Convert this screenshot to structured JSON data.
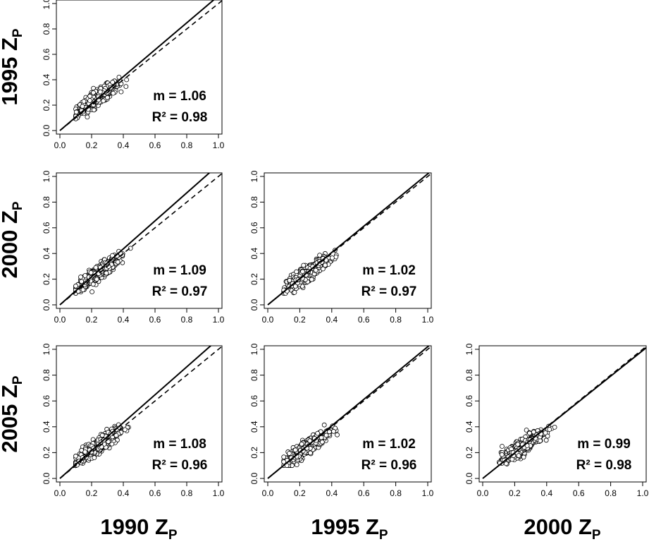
{
  "row_labels": [
    {
      "year": "1995",
      "symbol": "Z",
      "sub": "P"
    },
    {
      "year": "2000",
      "symbol": "Z",
      "sub": "P"
    },
    {
      "year": "2005",
      "symbol": "Z",
      "sub": "P"
    }
  ],
  "col_labels": [
    {
      "year": "1990",
      "symbol": "Z",
      "sub": "P"
    },
    {
      "year": "1995",
      "symbol": "Z",
      "sub": "P"
    },
    {
      "year": "2000",
      "symbol": "Z",
      "sub": "P"
    }
  ],
  "chart_data": [
    {
      "type": "scatter",
      "panel": "1995-vs-1990",
      "row": 0,
      "col": 0,
      "xlim": [
        0,
        1
      ],
      "ylim": [
        0,
        1
      ],
      "x_ticks": [
        "0.0",
        "0.2",
        "0.4",
        "0.6",
        "0.8",
        "1.0"
      ],
      "y_ticks": [
        "0.0",
        "0.2",
        "0.4",
        "0.6",
        "0.8",
        "1.0"
      ],
      "slope_label": "m = 1.06",
      "r2_label": "R² = 0.98",
      "slope": 1.06,
      "r2": 0.98,
      "point_cloud": {
        "x_range": [
          0.1,
          0.45
        ],
        "y_range": [
          0.09,
          0.45
        ],
        "center": [
          0.24,
          0.26
        ],
        "n": 420
      }
    },
    {
      "type": "scatter",
      "panel": "2000-vs-1990",
      "row": 1,
      "col": 0,
      "xlim": [
        0,
        1
      ],
      "ylim": [
        0,
        1
      ],
      "x_ticks": [
        "0.0",
        "0.2",
        "0.4",
        "0.6",
        "0.8",
        "1.0"
      ],
      "y_ticks": [
        "0.0",
        "0.2",
        "0.4",
        "0.6",
        "0.8",
        "1.0"
      ],
      "slope_label": "m = 1.09",
      "r2_label": "R² = 0.97",
      "slope": 1.09,
      "r2": 0.97,
      "point_cloud": {
        "x_range": [
          0.1,
          0.45
        ],
        "y_range": [
          0.09,
          0.44
        ],
        "center": [
          0.24,
          0.25
        ],
        "n": 420
      }
    },
    {
      "type": "scatter",
      "panel": "2000-vs-1995",
      "row": 1,
      "col": 1,
      "xlim": [
        0,
        1
      ],
      "ylim": [
        0,
        1
      ],
      "x_ticks": [
        "0.0",
        "0.2",
        "0.4",
        "0.6",
        "0.8",
        "1.0"
      ],
      "y_ticks": [
        "0.0",
        "0.2",
        "0.4",
        "0.6",
        "0.8",
        "1.0"
      ],
      "slope_label": "m = 1.02",
      "r2_label": "R² = 0.97",
      "slope": 1.02,
      "r2": 0.97,
      "point_cloud": {
        "x_range": [
          0.1,
          0.45
        ],
        "y_range": [
          0.09,
          0.44
        ],
        "center": [
          0.25,
          0.25
        ],
        "n": 420
      }
    },
    {
      "type": "scatter",
      "panel": "2005-vs-1990",
      "row": 2,
      "col": 0,
      "xlim": [
        0,
        1
      ],
      "ylim": [
        0,
        1
      ],
      "x_ticks": [
        "0.0",
        "0.2",
        "0.4",
        "0.6",
        "0.8",
        "1.0"
      ],
      "y_ticks": [
        "0.0",
        "0.2",
        "0.4",
        "0.6",
        "0.8",
        "1.0"
      ],
      "slope_label": "m = 1.08",
      "r2_label": "R² = 0.96",
      "slope": 1.08,
      "r2": 0.96,
      "point_cloud": {
        "x_range": [
          0.1,
          0.45
        ],
        "y_range": [
          0.1,
          0.44
        ],
        "center": [
          0.24,
          0.25
        ],
        "n": 420
      }
    },
    {
      "type": "scatter",
      "panel": "2005-vs-1995",
      "row": 2,
      "col": 1,
      "xlim": [
        0,
        1
      ],
      "ylim": [
        0,
        1
      ],
      "x_ticks": [
        "0.0",
        "0.2",
        "0.4",
        "0.6",
        "0.8",
        "1.0"
      ],
      "y_ticks": [
        "0.0",
        "0.2",
        "0.4",
        "0.6",
        "0.8",
        "1.0"
      ],
      "slope_label": "m = 1.02",
      "r2_label": "R² = 0.96",
      "slope": 1.02,
      "r2": 0.96,
      "point_cloud": {
        "x_range": [
          0.1,
          0.45
        ],
        "y_range": [
          0.1,
          0.44
        ],
        "center": [
          0.25,
          0.25
        ],
        "n": 420
      }
    },
    {
      "type": "scatter",
      "panel": "2005-vs-2000",
      "row": 2,
      "col": 2,
      "xlim": [
        0,
        1
      ],
      "ylim": [
        0,
        1
      ],
      "x_ticks": [
        "0.0",
        "0.2",
        "0.4",
        "0.6",
        "0.8",
        "1.0"
      ],
      "y_ticks": [
        "0.0",
        "0.2",
        "0.4",
        "0.6",
        "0.8",
        "1.0"
      ],
      "slope_label": "m = 0.99",
      "r2_label": "R² = 0.98",
      "slope": 0.99,
      "r2": 0.98,
      "point_cloud": {
        "x_range": [
          0.1,
          0.45
        ],
        "y_range": [
          0.1,
          0.44
        ],
        "center": [
          0.25,
          0.25
        ],
        "n": 420
      }
    }
  ],
  "lines": {
    "identity": "dashed",
    "fit": "solid"
  },
  "colors": {
    "ink": "#000000",
    "point_fill": "#ffffff",
    "background": "#ffffff"
  }
}
